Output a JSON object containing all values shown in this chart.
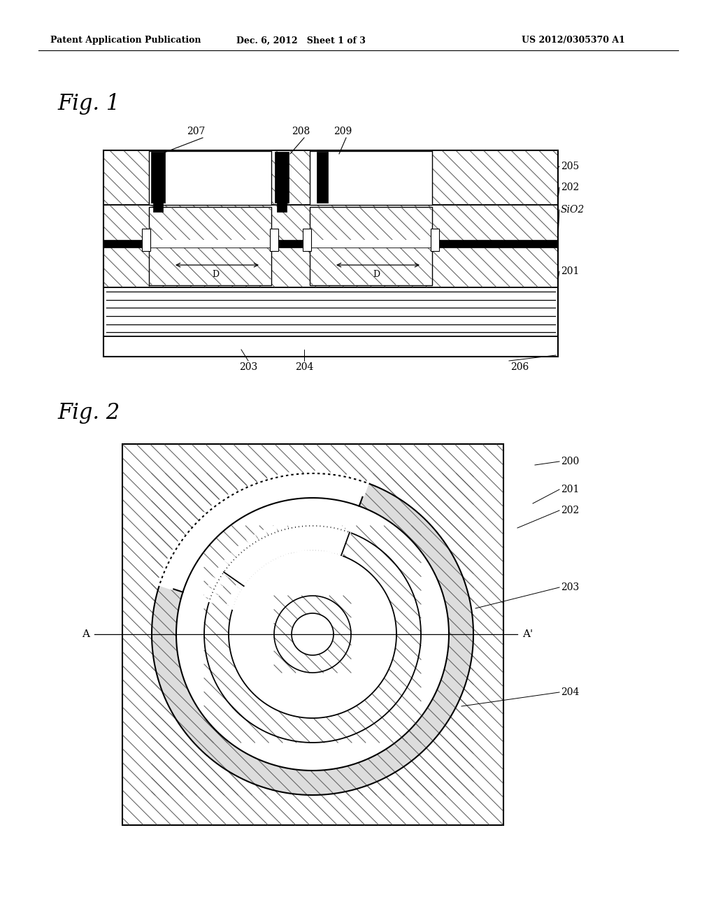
{
  "header_left": "Patent Application Publication",
  "header_mid": "Dec. 6, 2012   Sheet 1 of 3",
  "header_right": "US 2012/0305370 A1",
  "fig1_label": "Fig. 1",
  "fig2_label": "Fig. 2",
  "bg_color": "#ffffff"
}
